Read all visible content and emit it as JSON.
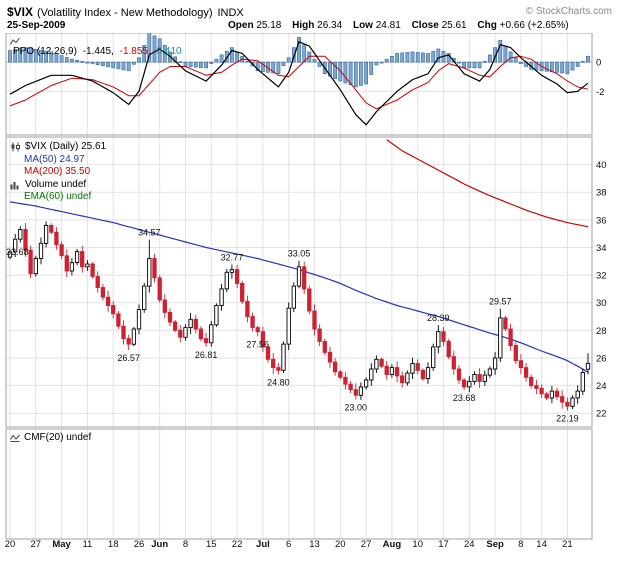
{
  "header": {
    "symbol": "$VIX",
    "title_rest": "(Volatility Index - New Methodology)",
    "exchange": "INDX",
    "credit": "© StockCharts.com",
    "date": "25-Sep-2009",
    "quote": [
      {
        "label": "Open",
        "value": "25.18"
      },
      {
        "label": "High",
        "value": "26.34"
      },
      {
        "label": "Low",
        "value": "24.81"
      },
      {
        "label": "Close",
        "value": "25.61"
      },
      {
        "label": "Chg",
        "value": "+0.66 (+2.65%)"
      }
    ]
  },
  "legend": {
    "ppo": {
      "name": "PPO (12,26,9)",
      "values": [
        {
          "text": "-1.445,",
          "color": "#000000"
        },
        {
          "text": "-1.855,",
          "color": "#cc0000"
        },
        {
          "text": "0.410",
          "color": "#009999"
        }
      ]
    },
    "price": [
      {
        "text": "$VIX (Daily) 25.61",
        "color": "#000000"
      },
      {
        "text": "MA(50) 24.97",
        "color": "#2233bb"
      },
      {
        "text": "MA(200) 35.50",
        "color": "#cc0000"
      },
      {
        "text": "Volume undef",
        "color": "#000000"
      },
      {
        "text": "EMA(60) undef",
        "color": "#007700"
      }
    ],
    "cmf": {
      "name": "CMF(20) undef"
    }
  },
  "chart_data": {
    "type": "candlestick",
    "title": "$VIX (Volatility Index - New Methodology) INDX",
    "symbol": "$VIX",
    "period": "Daily",
    "last_close": 25.61,
    "price_axis_ticks": [
      22,
      24,
      26,
      28,
      30,
      32,
      34,
      36,
      38,
      40
    ],
    "price_ylim": [
      21.0,
      42.0
    ],
    "first_open": 33.3,
    "closes": [
      33.68,
      34.6,
      35.3,
      33.8,
      32.1,
      33.2,
      34.3,
      35.6,
      35.1,
      34.2,
      33.4,
      32.3,
      32.9,
      33.7,
      32.6,
      32.8,
      31.9,
      31.1,
      30.4,
      29.8,
      29.2,
      28.3,
      27.4,
      27.0,
      28.1,
      29.5,
      31.2,
      33.2,
      31.8,
      30.2,
      29.3,
      28.6,
      28.0,
      27.5,
      28.2,
      28.8,
      28.1,
      27.4,
      27.1,
      28.4,
      29.8,
      31.0,
      32.2,
      32.4,
      31.4,
      30.1,
      29.0,
      28.2,
      27.9,
      26.8,
      25.9,
      25.3,
      25.1,
      27.0,
      29.6,
      31.2,
      32.6,
      31.0,
      29.4,
      28.1,
      27.2,
      26.4,
      25.7,
      25.0,
      24.6,
      24.1,
      23.7,
      23.3,
      23.9,
      24.4,
      25.2,
      25.9,
      25.4,
      24.8,
      25.3,
      24.7,
      24.2,
      24.9,
      25.6,
      25.1,
      24.5,
      25.3,
      26.8,
      27.9,
      27.2,
      26.1,
      25.2,
      24.4,
      23.9,
      24.3,
      24.8,
      24.3,
      24.76,
      25.2,
      26.0,
      28.9,
      28.1,
      26.9,
      25.8,
      25.3,
      24.6,
      24.0,
      23.8,
      23.4,
      23.1,
      23.6,
      23.2,
      22.8,
      22.5,
      23.1,
      23.6,
      24.95,
      25.61
    ],
    "extremes": {
      "23": {
        "low": 26.57
      },
      "27": {
        "high": 34.57
      },
      "38": {
        "low": 26.81
      },
      "43": {
        "high": 32.77
      },
      "48": {
        "low": 27.56
      },
      "52": {
        "low": 24.8
      },
      "56": {
        "high": 33.05
      },
      "67": {
        "low": 23.0
      },
      "83": {
        "high": 28.39
      },
      "88": {
        "low": 23.68
      },
      "95": {
        "high": 29.57
      },
      "108": {
        "low": 22.19
      },
      "112": {
        "open": 25.18,
        "high": 26.34,
        "low": 24.81
      }
    },
    "annotations": [
      {
        "index": 0,
        "text": "33.68",
        "side": "left"
      },
      {
        "index": 23,
        "text": "26.57",
        "side": "below"
      },
      {
        "index": 27,
        "text": "34.57",
        "side": "above"
      },
      {
        "index": 38,
        "text": "26.81",
        "side": "below"
      },
      {
        "index": 43,
        "text": "32.77",
        "side": "above"
      },
      {
        "index": 48,
        "text": "27.56",
        "side": "below"
      },
      {
        "index": 52,
        "text": "24.80",
        "side": "below"
      },
      {
        "index": 56,
        "text": "33.05",
        "side": "above"
      },
      {
        "index": 67,
        "text": "23.00",
        "side": "below"
      },
      {
        "index": 83,
        "text": "28.39",
        "side": "above"
      },
      {
        "index": 88,
        "text": "23.68",
        "side": "below"
      },
      {
        "index": 95,
        "text": "29.57",
        "side": "above"
      },
      {
        "index": 108,
        "text": "22.19",
        "side": "below"
      }
    ],
    "x_week_labels": [
      {
        "idx": 0,
        "label": "20"
      },
      {
        "idx": 5,
        "label": "27"
      },
      {
        "idx": 10,
        "label": "May"
      },
      {
        "idx": 15,
        "label": "11"
      },
      {
        "idx": 20,
        "label": "18"
      },
      {
        "idx": 25,
        "label": "26"
      },
      {
        "idx": 29,
        "label": "Jun"
      },
      {
        "idx": 34,
        "label": "8"
      },
      {
        "idx": 39,
        "label": "15"
      },
      {
        "idx": 44,
        "label": "22"
      },
      {
        "idx": 49,
        "label": "Jul"
      },
      {
        "idx": 54,
        "label": "6"
      },
      {
        "idx": 59,
        "label": "13"
      },
      {
        "idx": 64,
        "label": "20"
      },
      {
        "idx": 69,
        "label": "27"
      },
      {
        "idx": 74,
        "label": "Aug"
      },
      {
        "idx": 79,
        "label": "10"
      },
      {
        "idx": 84,
        "label": "17"
      },
      {
        "idx": 89,
        "label": "24"
      },
      {
        "idx": 94,
        "label": "Sep"
      },
      {
        "idx": 99,
        "label": "8"
      },
      {
        "idx": 103,
        "label": "14"
      },
      {
        "idx": 108,
        "label": "21"
      }
    ],
    "ma50": [
      [
        0,
        37.3
      ],
      [
        5,
        37.0
      ],
      [
        10,
        36.6
      ],
      [
        15,
        36.2
      ],
      [
        20,
        35.8
      ],
      [
        25,
        35.3
      ],
      [
        29,
        34.9
      ],
      [
        34,
        34.4
      ],
      [
        38,
        34.0
      ],
      [
        43,
        33.6
      ],
      [
        48,
        33.2
      ],
      [
        52,
        32.8
      ],
      [
        56,
        32.4
      ],
      [
        61,
        31.8
      ],
      [
        64,
        31.4
      ],
      [
        67,
        30.9
      ],
      [
        71,
        30.3
      ],
      [
        75,
        29.8
      ],
      [
        78,
        29.5
      ],
      [
        83,
        29.0
      ],
      [
        88,
        28.4
      ],
      [
        93,
        27.8
      ],
      [
        95,
        27.6
      ],
      [
        99,
        27.1
      ],
      [
        103,
        26.5
      ],
      [
        106,
        26.1
      ],
      [
        108,
        25.8
      ],
      [
        110,
        25.4
      ],
      [
        112,
        24.97
      ]
    ],
    "ma200": [
      [
        73,
        41.8
      ],
      [
        76,
        41.0
      ],
      [
        80,
        40.2
      ],
      [
        84,
        39.4
      ],
      [
        88,
        38.6
      ],
      [
        92,
        37.9
      ],
      [
        96,
        37.3
      ],
      [
        100,
        36.7
      ],
      [
        104,
        36.2
      ],
      [
        108,
        35.8
      ],
      [
        112,
        35.5
      ]
    ],
    "ppo_panel": {
      "label": "PPO (12,26,9)",
      "current": {
        "ppo": -1.445,
        "signal": -1.855,
        "histogram": 0.41
      },
      "ylim": [
        -5.0,
        2.0
      ],
      "ticks": [
        0,
        -2
      ],
      "ppo": [
        [
          0,
          -2.2
        ],
        [
          3,
          -1.6
        ],
        [
          8,
          -0.9
        ],
        [
          12,
          -0.9
        ],
        [
          16,
          -1.3
        ],
        [
          20,
          -2.1
        ],
        [
          23,
          -2.9
        ],
        [
          25,
          -2.0
        ],
        [
          27,
          0.5
        ],
        [
          29,
          0.9
        ],
        [
          31,
          0.4
        ],
        [
          34,
          -0.6
        ],
        [
          38,
          -1.3
        ],
        [
          41,
          -0.2
        ],
        [
          43,
          0.8
        ],
        [
          45,
          0.6
        ],
        [
          48,
          -0.5
        ],
        [
          52,
          -1.7
        ],
        [
          54,
          -0.7
        ],
        [
          56,
          1.4
        ],
        [
          58,
          1.1
        ],
        [
          61,
          -0.4
        ],
        [
          64,
          -1.9
        ],
        [
          67,
          -3.6
        ],
        [
          69,
          -4.3
        ],
        [
          71,
          -3.4
        ],
        [
          75,
          -2.0
        ],
        [
          78,
          -1.2
        ],
        [
          81,
          -0.8
        ],
        [
          83,
          0.3
        ],
        [
          85,
          0.5
        ],
        [
          88,
          -0.8
        ],
        [
          91,
          -1.3
        ],
        [
          93,
          -0.5
        ],
        [
          95,
          1.2
        ],
        [
          97,
          1.0
        ],
        [
          99,
          0.3
        ],
        [
          101,
          -0.3
        ],
        [
          103,
          -0.9
        ],
        [
          106,
          -1.5
        ],
        [
          108,
          -2.1
        ],
        [
          110,
          -2.0
        ],
        [
          112,
          -1.445
        ]
      ],
      "signal": [
        [
          0,
          -3.0
        ],
        [
          3,
          -2.6
        ],
        [
          8,
          -1.6
        ],
        [
          12,
          -1.1
        ],
        [
          16,
          -1.2
        ],
        [
          20,
          -1.7
        ],
        [
          23,
          -2.3
        ],
        [
          25,
          -2.3
        ],
        [
          27,
          -1.5
        ],
        [
          29,
          -0.7
        ],
        [
          31,
          -0.3
        ],
        [
          34,
          -0.3
        ],
        [
          38,
          -0.9
        ],
        [
          41,
          -0.7
        ],
        [
          43,
          -0.2
        ],
        [
          45,
          0.2
        ],
        [
          48,
          0.1
        ],
        [
          52,
          -0.9
        ],
        [
          54,
          -1.0
        ],
        [
          56,
          -0.3
        ],
        [
          58,
          0.4
        ],
        [
          61,
          0.4
        ],
        [
          64,
          -0.6
        ],
        [
          67,
          -1.9
        ],
        [
          69,
          -2.8
        ],
        [
          71,
          -3.2
        ],
        [
          75,
          -2.6
        ],
        [
          78,
          -1.9
        ],
        [
          81,
          -1.4
        ],
        [
          83,
          -0.6
        ],
        [
          85,
          -0.1
        ],
        [
          88,
          -0.4
        ],
        [
          91,
          -0.9
        ],
        [
          93,
          -1.0
        ],
        [
          95,
          -0.3
        ],
        [
          97,
          0.3
        ],
        [
          99,
          0.4
        ],
        [
          101,
          0.2
        ],
        [
          103,
          -0.3
        ],
        [
          106,
          -0.8
        ],
        [
          108,
          -1.3
        ],
        [
          110,
          -1.7
        ],
        [
          112,
          -1.855
        ]
      ]
    },
    "colors": {
      "candle_up": "#000000",
      "candle_down": "#cc2233",
      "ma50": "#2233bb",
      "ma200": "#cc0000",
      "ppo_line": "#000000",
      "ppo_signal": "#cc0000",
      "hist_fill": "#7fa8d0",
      "hist_stroke": "#31689e",
      "grid": "#e2e2e2",
      "zero_line": "#bbbbbb",
      "border": "#a0a0a0",
      "axis_text": "#111111",
      "annotation": "#111111"
    }
  }
}
